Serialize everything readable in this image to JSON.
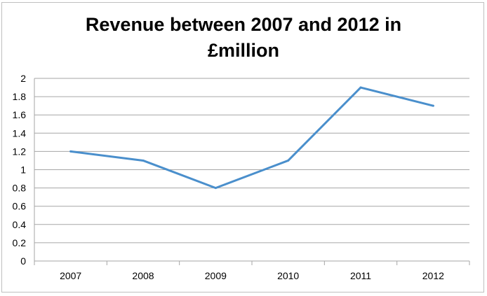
{
  "chart_data": {
    "type": "line",
    "title_lines": [
      "Revenue between 2007 and 2012 in",
      "£million"
    ],
    "title": "Revenue between 2007 and 2012 in £million",
    "xlabel": "",
    "ylabel": "",
    "categories": [
      "2007",
      "2008",
      "2009",
      "2010",
      "2011",
      "2012"
    ],
    "series": [
      {
        "values": [
          1.2,
          1.1,
          0.8,
          1.1,
          1.9,
          1.7
        ]
      }
    ],
    "ylim": [
      0,
      2
    ],
    "y_ticks": [
      "0",
      "0.2",
      "0.4",
      "0.6",
      "0.8",
      "1",
      "1.2",
      "1.4",
      "1.6",
      "1.8",
      "2"
    ],
    "grid": true,
    "legend": "none",
    "line_color": "#4a8fcc",
    "grid_color": "#a6a6a6"
  }
}
